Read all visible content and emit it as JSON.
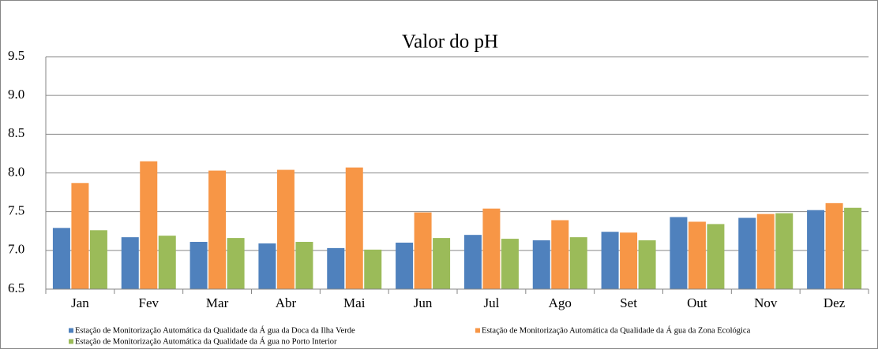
{
  "chart_data": {
    "type": "bar",
    "title": "Valor do pH",
    "categories": [
      "Jan",
      "Fev",
      "Mar",
      "Abr",
      "Mai",
      "Jun",
      "Jul",
      "Ago",
      "Set",
      "Out",
      "Nov",
      "Dez"
    ],
    "series": [
      {
        "name": "Estação de Monitorização Automática da Qualidade da Á gua da Doca da Ilha Verde",
        "color": "#4f81bd",
        "values": [
          7.29,
          7.17,
          7.11,
          7.09,
          7.03,
          7.1,
          7.2,
          7.13,
          7.24,
          7.43,
          7.42,
          7.52
        ]
      },
      {
        "name": "Estação de Monitorização Automática da Qualidade da Á gua da Zona Ecológica",
        "color": "#f79646",
        "values": [
          7.87,
          8.15,
          8.03,
          8.04,
          8.07,
          7.49,
          7.54,
          7.39,
          7.23,
          7.37,
          7.47,
          7.61
        ]
      },
      {
        "name": "Estação de Monitorização Automática da Qualidade da Á gua no Porto Interior",
        "color": "#9bbb59",
        "values": [
          7.26,
          7.19,
          7.16,
          7.11,
          7.01,
          7.16,
          7.15,
          7.17,
          7.13,
          7.34,
          7.48,
          7.55
        ]
      }
    ],
    "ylim": [
      6.5,
      9.5
    ],
    "yticks": [
      6.5,
      {
        "value": 7,
        "label": "7.0"
      },
      7.5,
      {
        "value": 8,
        "label": "8.0"
      },
      8.5,
      {
        "value": 9,
        "label": "9.0"
      },
      9.5
    ],
    "grid": true
  }
}
